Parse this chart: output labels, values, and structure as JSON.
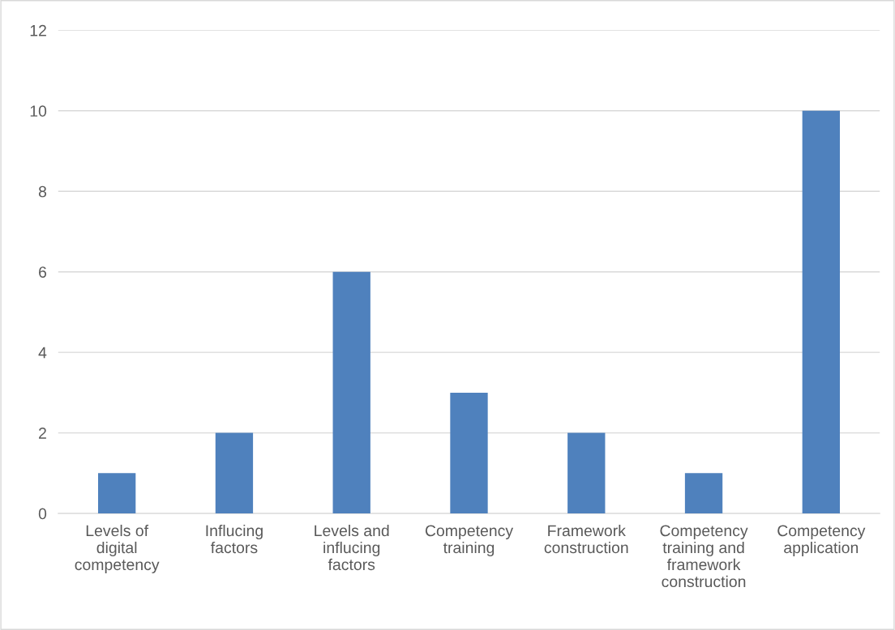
{
  "chart_data": {
    "type": "bar",
    "categories": [
      "Levels of\ndigital\ncompetency",
      "Influcing\nfactors",
      "Levels and\ninflucing\nfactors",
      "Competency\ntraining",
      "Framework\nconstruction",
      "Competency\ntraining and\nframework\nconstruction",
      "Competency\napplication"
    ],
    "values": [
      1,
      2,
      6,
      3,
      2,
      1,
      10
    ],
    "color": "#4f81bd",
    "ylim": [
      0,
      12
    ],
    "yticks": [
      0,
      2,
      4,
      6,
      8,
      10,
      12
    ],
    "grid": "y",
    "legend": false
  }
}
